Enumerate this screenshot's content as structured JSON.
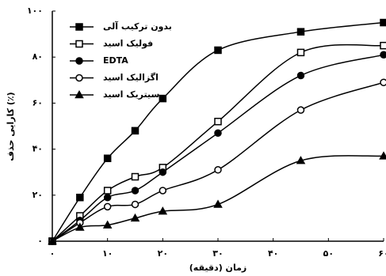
{
  "chart_data": {
    "type": "line",
    "x_label": "زمان (دقیقه)",
    "y_label": "کارایی حذف (٪)",
    "x": [
      0,
      5,
      10,
      15,
      20,
      30,
      45,
      60
    ],
    "series": [
      {
        "name": "بدون ترکیب آلی",
        "color": "#000000",
        "marker": "square",
        "filled": true,
        "values": [
          0,
          19,
          36,
          48,
          62,
          83,
          91,
          95
        ]
      },
      {
        "name": "فولیک اسید",
        "color": "#000000",
        "marker": "square",
        "filled": false,
        "values": [
          0,
          11,
          22,
          28,
          32,
          52,
          82,
          85
        ]
      },
      {
        "name": "EDTA",
        "color": "#000000",
        "marker": "circle",
        "filled": true,
        "values": [
          0,
          9,
          19,
          22,
          30,
          47,
          72,
          81
        ]
      },
      {
        "name": "اگزالیک اسید",
        "color": "#000000",
        "marker": "circle",
        "filled": false,
        "values": [
          0,
          8,
          15,
          16,
          22,
          31,
          57,
          69
        ]
      },
      {
        "name": "سیتریک اسید",
        "color": "#000000",
        "marker": "triangle",
        "filled": true,
        "values": [
          0,
          6,
          7,
          10,
          13,
          16,
          35,
          37
        ]
      }
    ],
    "xlim": [
      0,
      60
    ],
    "ylim": [
      0,
      100
    ],
    "xticks": [
      {
        "value": 0,
        "label": "۰"
      },
      {
        "value": 10,
        "label": "۱۰"
      },
      {
        "value": 20,
        "label": "۲۰"
      },
      {
        "value": 30,
        "label": "۳۰"
      },
      {
        "value": 40,
        "label": "۴۰"
      },
      {
        "value": 50,
        "label": "۵۰"
      },
      {
        "value": 60,
        "label": "۶۰"
      }
    ],
    "yticks": [
      {
        "value": 0,
        "label": "۰"
      },
      {
        "value": 20,
        "label": "۲۰"
      },
      {
        "value": 40,
        "label": "۴۰"
      },
      {
        "value": 60,
        "label": "۶۰"
      },
      {
        "value": 80,
        "label": "۸۰"
      },
      {
        "value": 100,
        "label": "۱۰۰"
      }
    ],
    "grid": false,
    "legend": "top-left"
  }
}
